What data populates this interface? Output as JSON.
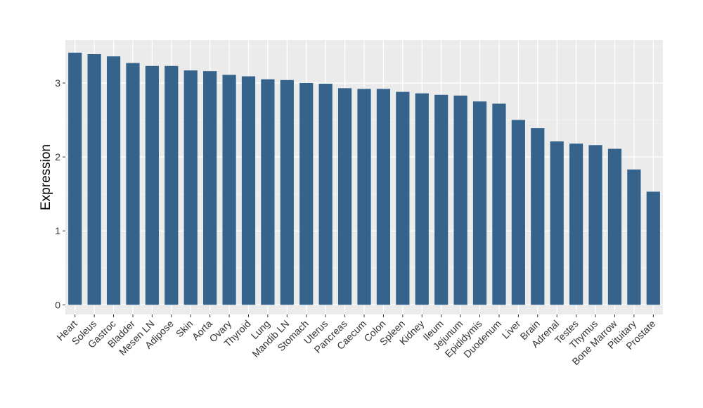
{
  "chart_data": {
    "type": "bar",
    "title": "",
    "xlabel": "",
    "ylabel": "Expression",
    "categories": [
      "Heart",
      "Soleus",
      "Gastroc",
      "Bladder",
      "Mesen LN",
      "Adipose",
      "Skin",
      "Aorta",
      "Ovary",
      "Thyroid",
      "Lung",
      "Mandib LN",
      "Stomach",
      "Uterus",
      "Pancreas",
      "Caecum",
      "Colon",
      "Spleen",
      "Kidney",
      "Ileum",
      "Jejunum",
      "Epididymis",
      "Duodenum",
      "Liver",
      "Brain",
      "Adrenal",
      "Testes",
      "Thymus",
      "Bone Marrow",
      "Pituitary",
      "Prostate"
    ],
    "values": [
      3.41,
      3.39,
      3.36,
      3.27,
      3.23,
      3.23,
      3.17,
      3.16,
      3.11,
      3.09,
      3.05,
      3.04,
      3.0,
      2.99,
      2.93,
      2.92,
      2.92,
      2.88,
      2.86,
      2.84,
      2.83,
      2.75,
      2.72,
      2.5,
      2.39,
      2.21,
      2.18,
      2.16,
      2.11,
      1.83,
      1.53
    ],
    "y_ticks": [
      0,
      1,
      2,
      3
    ],
    "ylim": [
      -0.13,
      3.58
    ],
    "grid": true,
    "legend": "none",
    "colors": {
      "bar": "#35638B",
      "panel": "#EBEBEB",
      "grid_major": "#FFFFFF",
      "grid_minor": "#F5F5F5",
      "tick": "#333333"
    }
  }
}
